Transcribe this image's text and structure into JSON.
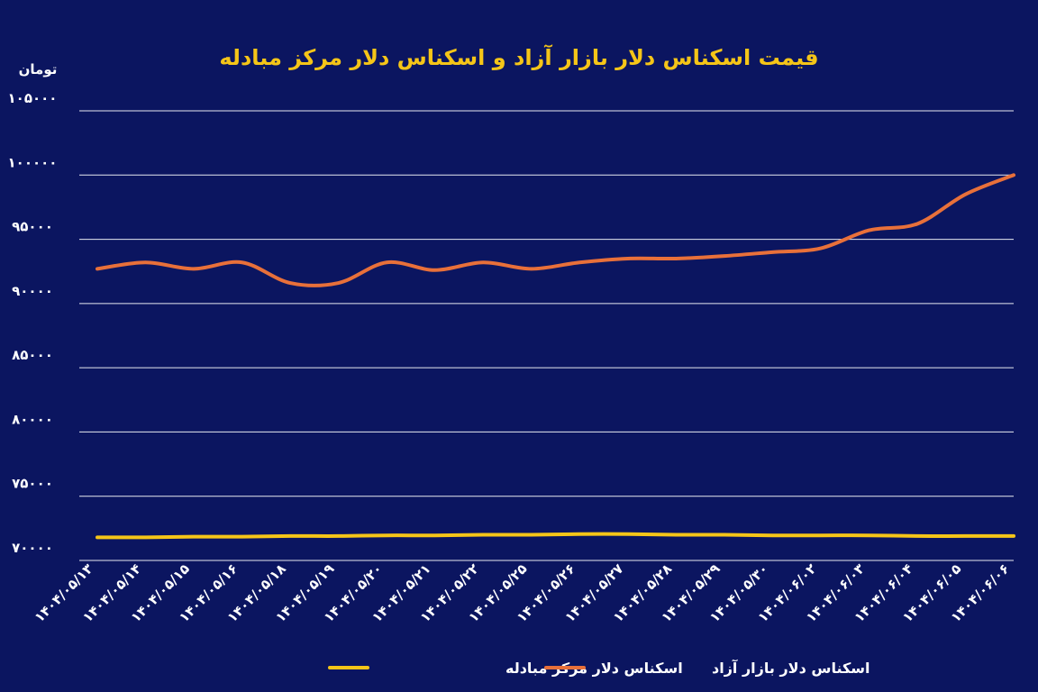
{
  "colors": {
    "background": "#0b1560",
    "title": "#f5c518",
    "free_market": "#e8703a",
    "exchange_center": "#f5c518",
    "grid": "#ffffff",
    "text": "#ffffff"
  },
  "chart_data": {
    "type": "line",
    "title": "قیمت اسکناس دلار بازار آزاد و اسکناس دلار مرکز مبادله",
    "ylabel": "تومان",
    "xlabel": "",
    "ylim": [
      70000,
      105000
    ],
    "yticks": [
      70000,
      75000,
      80000,
      85000,
      90000,
      95000,
      100000,
      105000
    ],
    "ytick_labels": [
      "۷۰۰۰۰",
      "۷۵۰۰۰",
      "۸۰۰۰۰",
      "۸۵۰۰۰",
      "۹۰۰۰۰",
      "۹۵۰۰۰",
      "۱۰۰۰۰۰",
      "۱۰۵۰۰۰"
    ],
    "grid": true,
    "legend_position": "bottom",
    "categories": [
      "۱۴۰۴/۰۵/۱۳",
      "۱۴۰۴/۰۵/۱۴",
      "۱۴۰۴/۰۵/۱۵",
      "۱۴۰۴/۰۵/۱۶",
      "۱۴۰۴/۰۵/۱۸",
      "۱۴۰۴/۰۵/۱۹",
      "۱۴۰۴/۰۵/۲۰",
      "۱۴۰۴/۰۵/۲۱",
      "۱۴۰۴/۰۵/۲۲",
      "۱۴۰۴/۰۵/۲۵",
      "۱۴۰۴/۰۵/۲۶",
      "۱۴۰۴/۰۵/۲۷",
      "۱۴۰۴/۰۵/۲۸",
      "۱۴۰۴/۰۵/۲۹",
      "۱۴۰۴/۰۵/۳۰",
      "۱۴۰۴/۰۶/۰۲",
      "۱۴۰۴/۰۶/۰۳",
      "۱۴۰۴/۰۶/۰۴",
      "۱۴۰۴/۰۶/۰۵",
      "۱۴۰۴/۰۶/۰۶"
    ],
    "series": [
      {
        "name": "اسکناس دلار مرکز مبادله",
        "color": "#f5c518",
        "values": [
          71800,
          71800,
          71850,
          71850,
          71900,
          71900,
          71950,
          71950,
          72000,
          72000,
          72050,
          72050,
          72000,
          72000,
          71950,
          71950,
          71950,
          71900,
          71900,
          71900
        ]
      },
      {
        "name": "اسکناس دلار بازار آزاد",
        "color": "#e8703a",
        "values": [
          92700,
          93200,
          92700,
          93200,
          91600,
          91600,
          93200,
          92600,
          93200,
          92700,
          93200,
          93500,
          93500,
          93700,
          94000,
          94300,
          95700,
          96200,
          98500,
          100000
        ]
      }
    ]
  }
}
